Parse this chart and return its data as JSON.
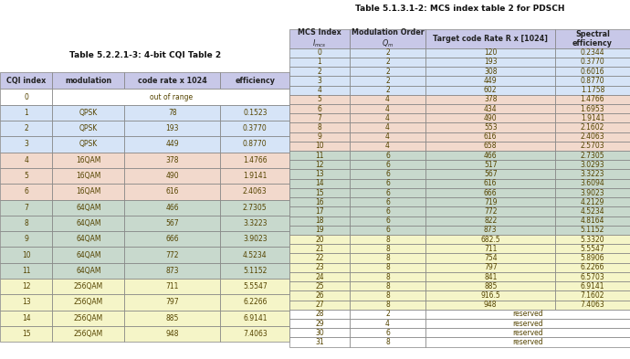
{
  "cqi_title": "Table 5.2.2.1-3: 4-bit CQI Table 2",
  "cqi_headers": [
    "CQI index",
    "modulation",
    "code rate x 1024",
    "efficiency"
  ],
  "cqi_rows": [
    [
      "0",
      "out of range",
      "",
      ""
    ],
    [
      "1",
      "QPSK",
      "78",
      "0.1523"
    ],
    [
      "2",
      "QPSK",
      "193",
      "0.3770"
    ],
    [
      "3",
      "QPSK",
      "449",
      "0.8770"
    ],
    [
      "4",
      "16QAM",
      "378",
      "1.4766"
    ],
    [
      "5",
      "16QAM",
      "490",
      "1.9141"
    ],
    [
      "6",
      "16QAM",
      "616",
      "2.4063"
    ],
    [
      "7",
      "64QAM",
      "466",
      "2.7305"
    ],
    [
      "8",
      "64QAM",
      "567",
      "3.3223"
    ],
    [
      "9",
      "64QAM",
      "666",
      "3.9023"
    ],
    [
      "10",
      "64QAM",
      "772",
      "4.5234"
    ],
    [
      "11",
      "64QAM",
      "873",
      "5.1152"
    ],
    [
      "12",
      "256QAM",
      "711",
      "5.5547"
    ],
    [
      "13",
      "256QAM",
      "797",
      "6.2266"
    ],
    [
      "14",
      "256QAM",
      "885",
      "6.9141"
    ],
    [
      "15",
      "256QAM",
      "948",
      "7.4063"
    ]
  ],
  "cqi_row_colors": [
    "#ffffff",
    "#d6e4f7",
    "#d6e4f7",
    "#d6e4f7",
    "#f2d9cc",
    "#f2d9cc",
    "#f2d9cc",
    "#c8d9cd",
    "#c8d9cd",
    "#c8d9cd",
    "#c8d9cd",
    "#c8d9cd",
    "#f5f5c8",
    "#f5f5c8",
    "#f5f5c8",
    "#f5f5c8"
  ],
  "mcs_title": "Table 5.1.3.1-2: MCS index table 2 for PDSCH",
  "mcs_header_line1": [
    "MCS Index",
    "Modulation Order",
    "Target code Rate R x [1024]",
    "Spectral"
  ],
  "mcs_header_line2": [
    "I_mcs",
    "Q_m",
    "",
    "efficiency"
  ],
  "cqi_header_bold": true,
  "mcs_rows": [
    [
      "0",
      "2",
      "120",
      "0.2344"
    ],
    [
      "1",
      "2",
      "193",
      "0.3770"
    ],
    [
      "2",
      "2",
      "308",
      "0.6016"
    ],
    [
      "3",
      "2",
      "449",
      "0.8770"
    ],
    [
      "4",
      "2",
      "602",
      "1.1758"
    ],
    [
      "5",
      "4",
      "378",
      "1.4766"
    ],
    [
      "6",
      "4",
      "434",
      "1.6953"
    ],
    [
      "7",
      "4",
      "490",
      "1.9141"
    ],
    [
      "8",
      "4",
      "553",
      "2.1602"
    ],
    [
      "9",
      "4",
      "616",
      "2.4063"
    ],
    [
      "10",
      "4",
      "658",
      "2.5703"
    ],
    [
      "11",
      "6",
      "466",
      "2.7305"
    ],
    [
      "12",
      "6",
      "517",
      "3.0293"
    ],
    [
      "13",
      "6",
      "567",
      "3.3223"
    ],
    [
      "14",
      "6",
      "616",
      "3.6094"
    ],
    [
      "15",
      "6",
      "666",
      "3.9023"
    ],
    [
      "16",
      "6",
      "719",
      "4.2129"
    ],
    [
      "17",
      "6",
      "772",
      "4.5234"
    ],
    [
      "18",
      "6",
      "822",
      "4.8164"
    ],
    [
      "19",
      "6",
      "873",
      "5.1152"
    ],
    [
      "20",
      "8",
      "682.5",
      "5.3320"
    ],
    [
      "21",
      "8",
      "711",
      "5.5547"
    ],
    [
      "22",
      "8",
      "754",
      "5.8906"
    ],
    [
      "23",
      "8",
      "797",
      "6.2266"
    ],
    [
      "24",
      "8",
      "841",
      "6.5703"
    ],
    [
      "25",
      "8",
      "885",
      "6.9141"
    ],
    [
      "26",
      "8",
      "916.5",
      "7.1602"
    ],
    [
      "27",
      "8",
      "948",
      "7.4063"
    ],
    [
      "28",
      "2",
      "reserved",
      ""
    ],
    [
      "29",
      "4",
      "reserved",
      ""
    ],
    [
      "30",
      "6",
      "reserved",
      ""
    ],
    [
      "31",
      "8",
      "reserved",
      ""
    ]
  ],
  "mcs_row_colors": [
    "#d6e4f7",
    "#d6e4f7",
    "#d6e4f7",
    "#d6e4f7",
    "#d6e4f7",
    "#f2d9cc",
    "#f2d9cc",
    "#f2d9cc",
    "#f2d9cc",
    "#f2d9cc",
    "#f2d9cc",
    "#c8d9cd",
    "#c8d9cd",
    "#c8d9cd",
    "#c8d9cd",
    "#c8d9cd",
    "#c8d9cd",
    "#c8d9cd",
    "#c8d9cd",
    "#c8d9cd",
    "#f5f5c8",
    "#f5f5c8",
    "#f5f5c8",
    "#f5f5c8",
    "#f5f5c8",
    "#f5f5c8",
    "#f5f5c8",
    "#f5f5c8",
    "#ffffff",
    "#ffffff",
    "#ffffff",
    "#ffffff"
  ],
  "header_color": "#c8c8e8",
  "border_color": "#808080",
  "text_color": "#554400",
  "header_text_color": "#222222",
  "bg_color": "#ffffff",
  "title_fontsize": 6.5,
  "cell_fontsize": 5.5,
  "header_fontsize": 5.8
}
